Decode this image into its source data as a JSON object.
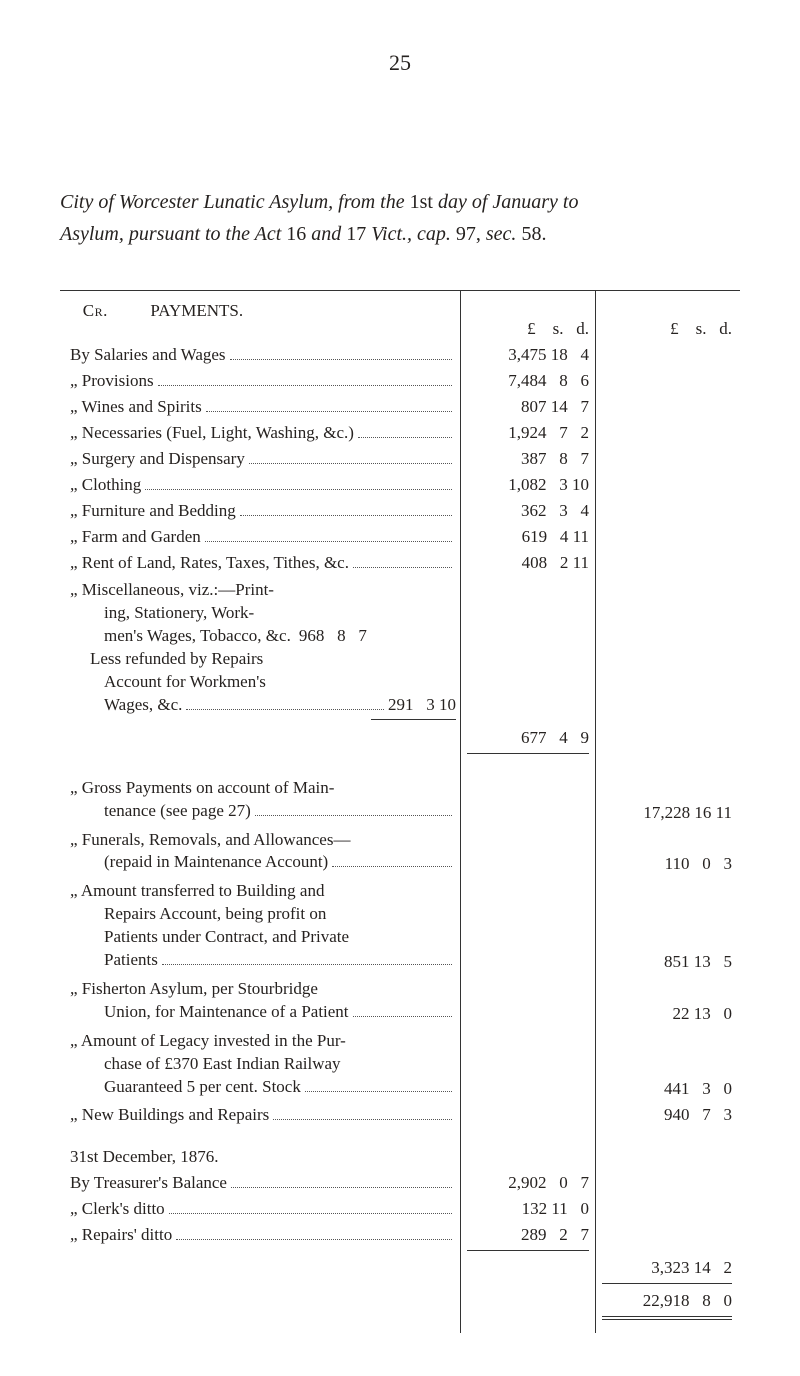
{
  "page_number": "25",
  "title_line1_a": "City of Worcester Lunatic Asylum, from the ",
  "title_line1_b": "1st",
  "title_line1_c": " day of January to",
  "title_line2_a": "Asylum, pursuant to the Act ",
  "title_line2_b": "16",
  "title_line2_c": " and ",
  "title_line2_d": "17",
  "title_line2_e": " Vict., cap. ",
  "title_line2_f": "97,",
  "title_line2_g": " sec. ",
  "title_line2_h": "58.",
  "cr_label": "Cr.",
  "payments_label": "PAYMENTS.",
  "lsd_mid": "£    s.   d.",
  "lsd_right": "£    s.   d.",
  "rows_top": [
    {
      "label_prefix": "By ",
      "label": "Salaries and Wages",
      "mid": "3,475 18   4"
    },
    {
      "label_prefix": "„  ",
      "label": "Provisions",
      "mid": "7,484   8   6"
    },
    {
      "label_prefix": "„  ",
      "label": "Wines and Spirits",
      "mid": "807 14   7"
    },
    {
      "label_prefix": "„  ",
      "label": "Necessaries (Fuel, Light, Washing, &c.)",
      "mid": "1,924   7   2"
    },
    {
      "label_prefix": "„  ",
      "label": "Surgery and Dispensary",
      "mid": "387   8   7"
    },
    {
      "label_prefix": "„  ",
      "label": "Clothing",
      "mid": "1,082   3 10"
    },
    {
      "label_prefix": "„  ",
      "label": "Furniture and Bedding",
      "mid": "362   3   4"
    },
    {
      "label_prefix": "„  ",
      "label": "Farm and Garden",
      "mid": "619   4 11"
    },
    {
      "label_prefix": "„  ",
      "label": "Rent of Land, Rates, Taxes, Tithes, &c.",
      "mid": "408   2 11"
    }
  ],
  "misc_intro": "„  Miscellaneous, viz.:—Print-",
  "misc_l2": "ing,   Stationery,   Work-",
  "misc_l3a": "men's Wages, Tobacco, &c.",
  "misc_l3b": "968   8   7",
  "misc_less1": "Less refunded by Repairs",
  "misc_less2": "Account for Workmen's",
  "misc_less3a": "Wages, &c.",
  "misc_less3b": "291   3 10",
  "misc_total_mid": "677   4   9",
  "section2": [
    {
      "text": "„  Gross Payments on account of Main-",
      "cont": "tenance (see page 27)",
      "right": "17,228 16 11"
    },
    {
      "text": "„  Funerals, Removals, and Allowances—",
      "cont": "(repaid in Maintenance Account)",
      "right": "110   0   3"
    },
    {
      "text": "„  Amount transferred to Building and",
      "cont2": "Repairs Account, being profit on",
      "cont3": "Patients under Contract, and Private",
      "cont4": "Patients",
      "right": "851 13   5"
    },
    {
      "text": "„  Fisherton Asylum, per Stourbridge",
      "cont": "Union, for Maintenance of a Patient",
      "right": "22 13   0"
    },
    {
      "text": "„  Amount of Legacy invested in the Pur-",
      "cont2": "chase of £370 East Indian Railway",
      "cont3a": "Guaranteed 5 per cent. Stock",
      "right": "441   3   0"
    },
    {
      "text_simple": "„  New Buildings and Repairs",
      "right": "940   7   3"
    }
  ],
  "date_line": "31st December, 1876.",
  "treasurer": {
    "label": "By Treasurer's Balance",
    "mid": "2,902   0   7"
  },
  "clerk": {
    "label": "„  Clerk's ditto",
    "mid": "132 11   0"
  },
  "repairs": {
    "label": "„  Repairs' ditto",
    "mid": "289   2   7"
  },
  "subtotal_right": "3,323 14   2",
  "grand_total_right": "22,918   8   0"
}
